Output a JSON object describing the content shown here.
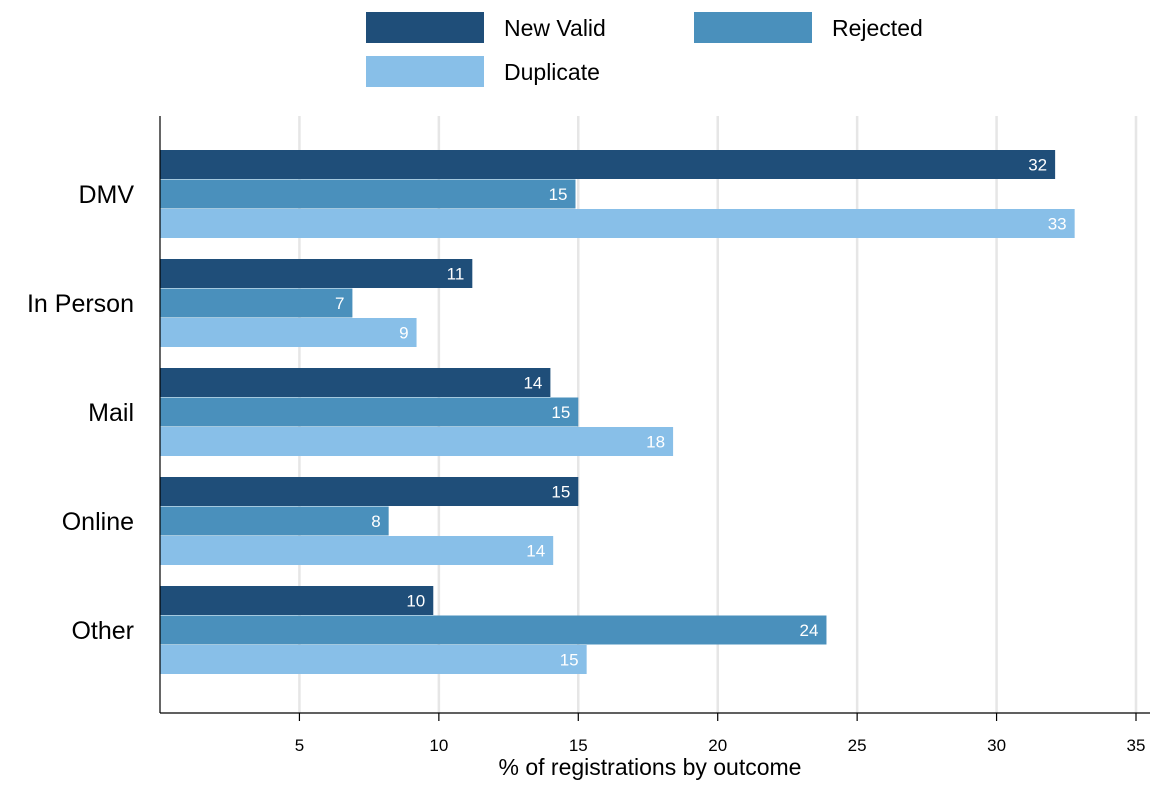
{
  "chart_data": {
    "type": "bar",
    "orientation": "horizontal",
    "categories": [
      "DMV",
      "In Person",
      "Mail",
      "Online",
      "Other"
    ],
    "series": [
      {
        "name": "New Valid",
        "values": [
          32.1,
          11.2,
          14.0,
          15.0,
          9.8
        ],
        "labels": [
          "32",
          "11",
          "14",
          "15",
          "10"
        ],
        "color": "#1f4e79"
      },
      {
        "name": "Rejected",
        "values": [
          14.9,
          6.9,
          15.0,
          8.2,
          23.9
        ],
        "labels": [
          "15",
          "7",
          "15",
          "8",
          "24"
        ],
        "color": "#4a90bc"
      },
      {
        "name": "Duplicate",
        "values": [
          32.8,
          9.2,
          18.4,
          14.1,
          15.3
        ],
        "labels": [
          "33",
          "9",
          "18",
          "14",
          "15"
        ],
        "color": "#88bfe8"
      }
    ],
    "xlabel": "% of registrations by outcome",
    "ylabel": "",
    "xlim": [
      0,
      35
    ],
    "xticks": [
      5,
      10,
      15,
      20,
      25,
      30,
      35
    ],
    "grid": "vertical",
    "legend_position": "top"
  }
}
